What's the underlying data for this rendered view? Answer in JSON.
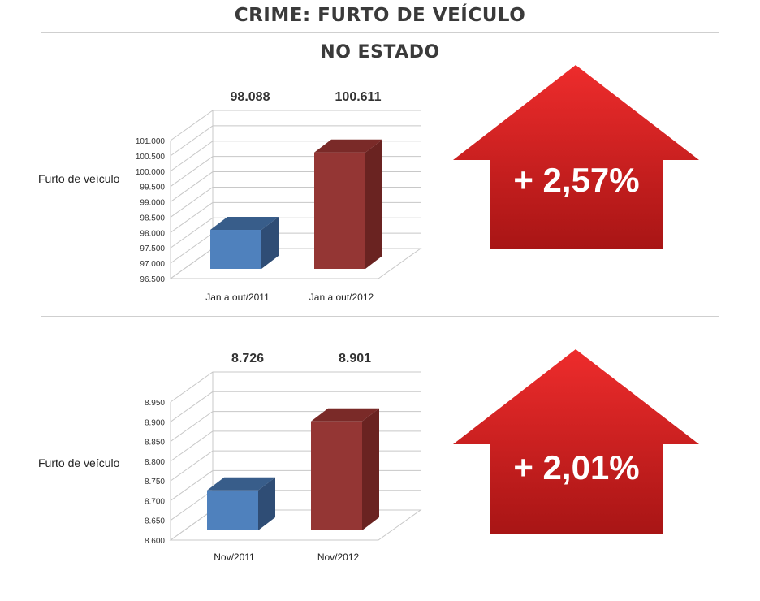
{
  "page": {
    "title": "CRIME: FURTO DE VEÍCULO",
    "subtitle": "NO ESTADO"
  },
  "colors": {
    "blue_front": "#4f81bd",
    "blue_top": "#385d8a",
    "blue_side": "#2f4d75",
    "red_front": "#943634",
    "red_top": "#7a2a28",
    "red_side": "#6a2321",
    "arrow_top": "#ee2c2c",
    "arrow_bottom": "#a81515",
    "grid": "#c8c8c8"
  },
  "chart_data": [
    {
      "type": "bar",
      "ylabel": "Furto de veículo",
      "categories": [
        "Jan a out/2011",
        "Jan a out/2012"
      ],
      "values": [
        98088,
        100611
      ],
      "data_labels": [
        "98.088",
        "100.611"
      ],
      "ylim": [
        96500,
        101000
      ],
      "yticks": [
        {
          "value": 96500,
          "label": "96.500"
        },
        {
          "value": 97000,
          "label": "97.000"
        },
        {
          "value": 97500,
          "label": "97.500"
        },
        {
          "value": 98000,
          "label": "98.000"
        },
        {
          "value": 98500,
          "label": "98.500"
        },
        {
          "value": 99000,
          "label": "99.000"
        },
        {
          "value": 99500,
          "label": "99.500"
        },
        {
          "value": 100000,
          "label": "100.000"
        },
        {
          "value": 100500,
          "label": "100.500"
        },
        {
          "value": 101000,
          "label": "101.000"
        }
      ],
      "change_label": "+ 2,57%"
    },
    {
      "type": "bar",
      "ylabel": "Furto de veículo",
      "categories": [
        "Nov/2011",
        "Nov/2012"
      ],
      "values": [
        8726,
        8901
      ],
      "data_labels": [
        "8.726",
        "8.901"
      ],
      "ylim": [
        8600,
        8950
      ],
      "yticks": [
        {
          "value": 8600,
          "label": "8.600"
        },
        {
          "value": 8650,
          "label": "8.650"
        },
        {
          "value": 8700,
          "label": "8.700"
        },
        {
          "value": 8750,
          "label": "8.750"
        },
        {
          "value": 8800,
          "label": "8.800"
        },
        {
          "value": 8850,
          "label": "8.850"
        },
        {
          "value": 8900,
          "label": "8.900"
        },
        {
          "value": 8950,
          "label": "8.950"
        }
      ],
      "change_label": "+ 2,01%"
    }
  ]
}
